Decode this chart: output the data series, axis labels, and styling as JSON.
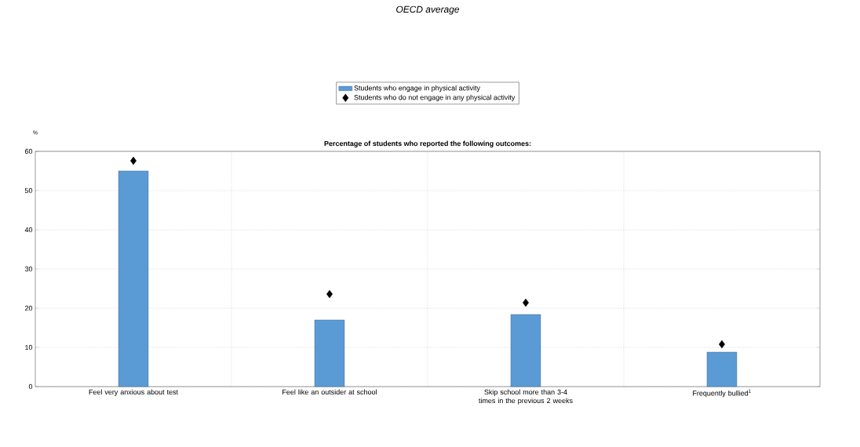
{
  "chart_data": {
    "type": "bar",
    "title": "OECD average",
    "subtitle": "Percentage of students who reported the following outcomes:",
    "ylabel": "%",
    "categories": [
      "Feel very anxious about test",
      "Feel like an outsider at school",
      "Skip school more than 3-4 times in the previous 2 weeks",
      "Frequently bullied$^{1}$"
    ],
    "series": [
      {
        "name": "Students who engage in physical activity",
        "color": "#5b9bd5",
        "values": [
          55,
          17,
          18.4,
          8.8
        ]
      },
      {
        "name": "Students who do not engage in any physical activity",
        "type": "scatter",
        "marker": "diamond",
        "color": "#000000",
        "values": [
          57.6,
          23.6,
          21.4,
          10.8
        ]
      }
    ],
    "ylim": [
      0,
      60
    ],
    "yticks": [
      0,
      10,
      20,
      30,
      40,
      50,
      60
    ],
    "grid": true,
    "legend": "top"
  }
}
